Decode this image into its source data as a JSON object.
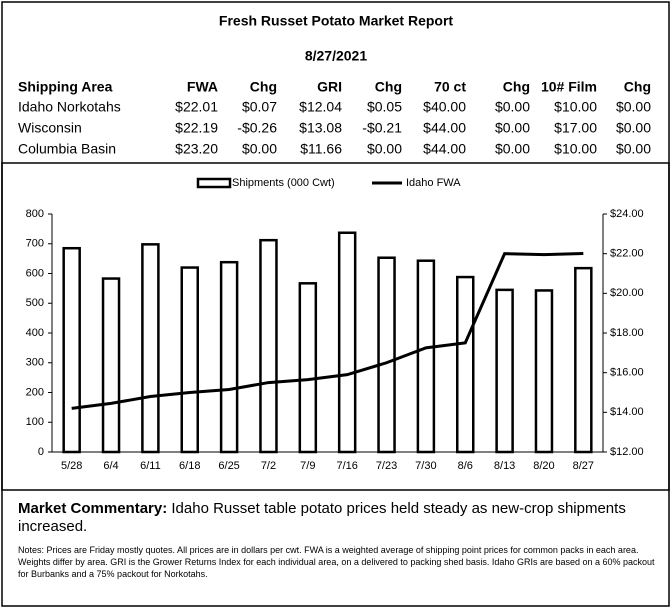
{
  "header": {
    "title": "Fresh Russet Potato Market Report",
    "date": "8/27/2021"
  },
  "table": {
    "columns": [
      "Shipping Area",
      "FWA",
      "Chg",
      "GRI",
      "Chg",
      "70 ct",
      "Chg",
      "10# Film",
      "Chg"
    ],
    "rows": [
      [
        "Idaho Norkotahs",
        "$22.01",
        "$0.07",
        "$12.04",
        "$0.05",
        "$40.00",
        "$0.00",
        "$10.00",
        "$0.00"
      ],
      [
        "Wisconsin",
        "$22.19",
        "-$0.26",
        "$13.08",
        "-$0.21",
        "$44.00",
        "$0.00",
        "$17.00",
        "$0.00"
      ],
      [
        "Columbia Basin",
        "$23.20",
        "$0.00",
        "$11.66",
        "$0.00",
        "$44.00",
        "$0.00",
        "$10.00",
        "$0.00"
      ]
    ]
  },
  "chart_data": {
    "type": "bar-line",
    "categories": [
      "5/28",
      "6/4",
      "6/11",
      "6/18",
      "6/25",
      "7/2",
      "7/9",
      "7/16",
      "7/23",
      "7/30",
      "8/6",
      "8/13",
      "8/20",
      "8/27"
    ],
    "series": [
      {
        "name": "Shipments (000 Cwt)",
        "type": "bar",
        "color": "#000000",
        "values": [
          685,
          583,
          698,
          620,
          638,
          712,
          567,
          737,
          653,
          643,
          588,
          545,
          543,
          618
        ]
      },
      {
        "name": "Idaho FWA",
        "type": "line",
        "axis": "y2",
        "color": "#000000",
        "values": [
          14.2,
          14.45,
          14.8,
          15.0,
          15.15,
          15.5,
          15.65,
          15.9,
          16.5,
          17.25,
          17.5,
          22.0,
          21.95,
          22.01
        ]
      }
    ],
    "ylim": [
      0,
      800
    ],
    "yticks": [
      0,
      100,
      200,
      300,
      400,
      500,
      600,
      700,
      800
    ],
    "y2lim": [
      12,
      24
    ],
    "y2ticks": [
      {
        "value": 12,
        "label": "$12.00"
      },
      {
        "value": 14,
        "label": "$14.00"
      },
      {
        "value": 16,
        "label": "$16.00"
      },
      {
        "value": 18,
        "label": "$18.00"
      },
      {
        "value": 20,
        "label": "$20.00"
      },
      {
        "value": 22,
        "label": "$22.00"
      },
      {
        "value": 24,
        "label": "$24.00"
      }
    ],
    "legend": "top"
  },
  "commentary": {
    "label": "Market Commentary:",
    "text": "Idaho Russet table potato prices held steady as new-crop shipments increased."
  },
  "notes": "Notes: Prices are Friday mostly quotes. All prices are in dollars per cwt. FWA is a weighted average of shipping point prices for  common packs in each area. Weights differ by area. GRI is the Grower Returns Index for each individual area, on a delivered to packing shed basis. Idaho GRIs are based on a 60% packout for Burbanks and a 75% packout for Norkotahs."
}
